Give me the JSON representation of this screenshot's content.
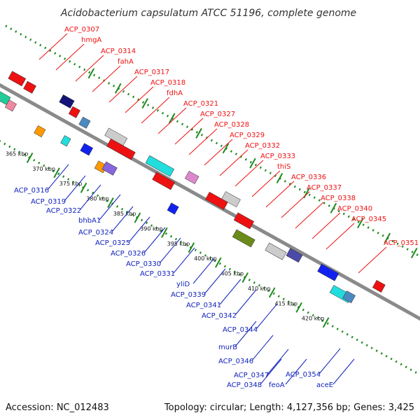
{
  "title": "Acidobacterium capsulatum ATCC 51196, complete genome",
  "footer": {
    "accession": "Accession: NC_012483",
    "topology": "Topology: circular; Length: 4,127,356 bp; Genes: 3,425"
  },
  "colors": {
    "forward_label": "#ee1111",
    "reverse_label": "#1122bb",
    "backbone": "#8a8a8a",
    "dotted_track": "#1e8a1e",
    "tick": "#1e8a1e"
  },
  "scale_ticks": [
    "365 kbp",
    "370 kbp",
    "375 kbp",
    "380 kbp",
    "385 kbp",
    "390 kbp",
    "395 kbp",
    "400 kbp",
    "405 kbp",
    "410 kbp",
    "415 kbp",
    "420 kbp"
  ],
  "forward_labels": [
    "ACP_0307",
    "hmgA",
    "ACP_0314",
    "fahA",
    "ACP_0317",
    "ACP_0318",
    "fdhA",
    "ACP_0321",
    "ACP_0327",
    "ACP_0328",
    "ACP_0329",
    "ACP_0332",
    "ACP_0333",
    "thiS",
    "ACP_0336",
    "ACP_0337",
    "ACP_0338",
    "ACP_0340",
    "ACP_0345",
    "ACP_0351"
  ],
  "reverse_labels": [
    "ACP_0316",
    "ACP_0319",
    "ACP_0322",
    "bhbA1",
    "ACP_0324",
    "ACP_0325",
    "ACP_0326",
    "ACP_0330",
    "ACP_0331",
    "yliD",
    "ACP_0339",
    "ACP_0341",
    "ACP_0342",
    "ACP_0344",
    "murB",
    "ACP_0346",
    "ACP_0347",
    "ACP_0348",
    "feoA",
    "ACP_0354",
    "aceE"
  ]
}
